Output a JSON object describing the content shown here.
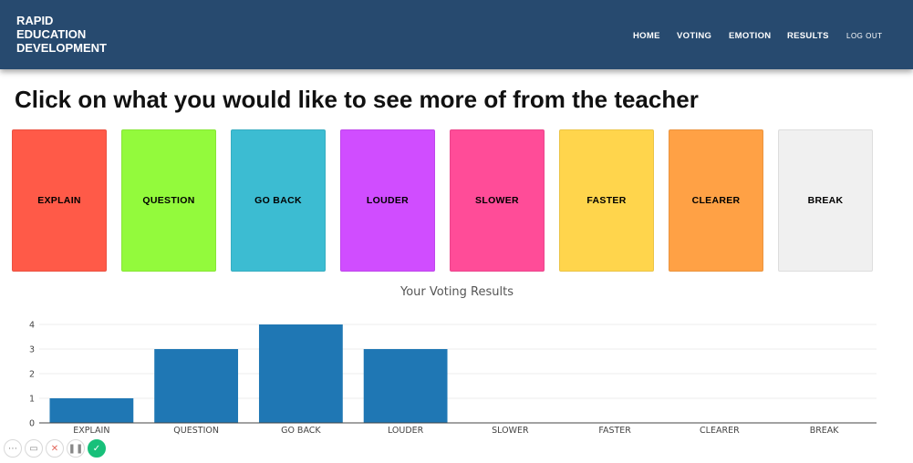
{
  "brand": {
    "line1": "RAPID",
    "line2": "EDUCATION",
    "line3": "DEVELOPMENT"
  },
  "nav": {
    "home": "HOME",
    "voting": "VOTING",
    "emotion": "EMOTION",
    "results": "RESULTS",
    "logout": "LOG OUT"
  },
  "page": {
    "title": "Click on what you would like to see more of from the teacher"
  },
  "cards": [
    {
      "label": "EXPLAIN",
      "color": "#ff5a48"
    },
    {
      "label": "QUESTION",
      "color": "#93fa3c"
    },
    {
      "label": "GO BACK",
      "color": "#3cbcd2"
    },
    {
      "label": "LOUDER",
      "color": "#d04dff"
    },
    {
      "label": "SLOWER",
      "color": "#ff4c98"
    },
    {
      "label": "FASTER",
      "color": "#ffd54c"
    },
    {
      "label": "CLEARER",
      "color": "#ffa145"
    },
    {
      "label": "BREAK",
      "color": "#f0f0f0"
    }
  ],
  "chart_data": {
    "type": "bar",
    "title": "Your Voting Results",
    "categories": [
      "EXPLAIN",
      "QUESTION",
      "GO BACK",
      "LOUDER",
      "SLOWER",
      "FASTER",
      "CLEARER",
      "BREAK"
    ],
    "values": [
      1,
      3,
      4,
      3,
      0,
      0,
      0,
      0
    ],
    "ylim": [
      0,
      4
    ],
    "yticks": [
      0,
      1,
      2,
      3,
      4
    ],
    "bar_color": "#1f77b4",
    "grid": true,
    "xlabel": "",
    "ylabel": ""
  },
  "toolbar": {
    "more_glyph": "⋯",
    "camera_glyph": "▭",
    "close_glyph": "✕",
    "pause_glyph": "❚❚",
    "ok_glyph": "✓"
  }
}
